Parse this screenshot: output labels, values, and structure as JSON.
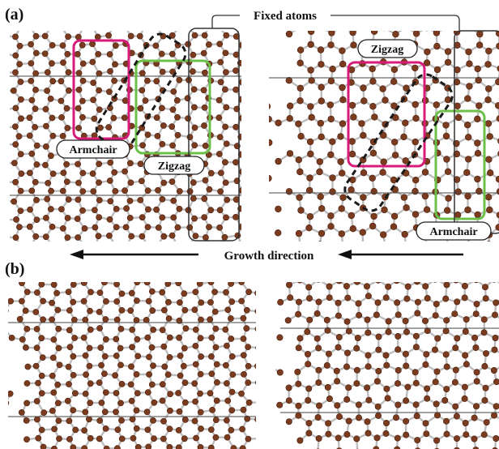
{
  "panels": {
    "a": {
      "label": "(a)"
    },
    "b": {
      "label": "(b)"
    }
  },
  "labels": {
    "fixed_atoms": "Fixed atoms",
    "growth_direction": "Growth direction",
    "armchair": "Armchair",
    "zigzag": "Zigzag"
  },
  "colors": {
    "atom": "#7a3b1f",
    "bond": "#bdbdbd",
    "armchair_box": "#d81b7a",
    "zigzag_box": "#6cc04a",
    "dashed_box": "#1a1a1a",
    "text": "#111111"
  }
}
